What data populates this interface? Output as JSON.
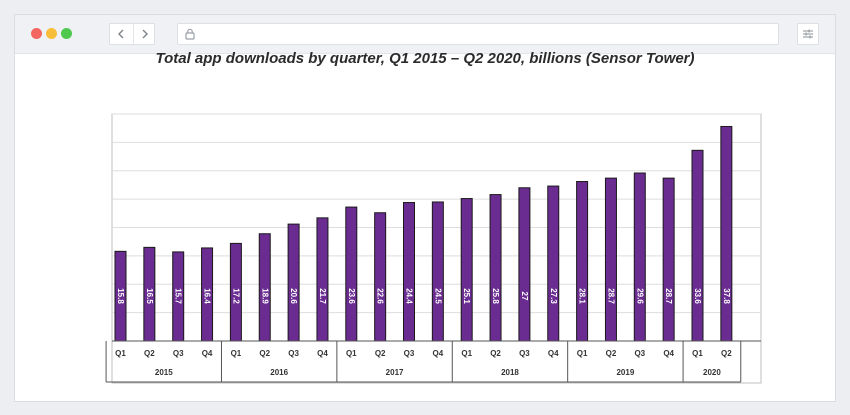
{
  "browser": {
    "buttons": {
      "back_icon": "chevron-left-icon",
      "forward_icon": "chevron-right-icon",
      "lock_icon": "lock-icon",
      "menu_icon": "sliders-icon"
    },
    "traffic_lights": [
      "#f2665f",
      "#f7be3a",
      "#4fc94d"
    ]
  },
  "chart_data": {
    "type": "bar",
    "title": "Total app downloads by quarter, Q1 2015 – Q2 2020, billions (Sensor Tower)",
    "categories": [
      "Q1",
      "Q2",
      "Q3",
      "Q4",
      "Q1",
      "Q2",
      "Q3",
      "Q4",
      "Q1",
      "Q2",
      "Q3",
      "Q4",
      "Q1",
      "Q2",
      "Q3",
      "Q4",
      "Q1",
      "Q2",
      "Q3",
      "Q4",
      "Q1",
      "Q2"
    ],
    "years": [
      {
        "label": "2015",
        "count": 4
      },
      {
        "label": "2016",
        "count": 4
      },
      {
        "label": "2017",
        "count": 4
      },
      {
        "label": "2018",
        "count": 4
      },
      {
        "label": "2019",
        "count": 4
      },
      {
        "label": "2020",
        "count": 2
      }
    ],
    "values": [
      15.8,
      16.5,
      15.7,
      16.4,
      17.2,
      18.9,
      20.6,
      21.7,
      23.6,
      22.6,
      24.4,
      24.5,
      25.1,
      25.8,
      27,
      27.3,
      28.1,
      28.7,
      29.6,
      28.7,
      33.6,
      37.8
    ],
    "value_labels": [
      "15.8",
      "16.5",
      "15.7",
      "16.4",
      "17.2",
      "18.9",
      "20.6",
      "21.7",
      "23.6",
      "22.6",
      "24.4",
      "24.5",
      "25.1",
      "25.8",
      "27",
      "27.3",
      "28.1",
      "28.7",
      "29.6",
      "28.7",
      "33.6",
      "37.8"
    ],
    "ylim": [
      0,
      40
    ],
    "grid": true,
    "bar_color": "#6a2c91",
    "bar_edge": "#1a1a1a",
    "label_color": "#ffffff"
  }
}
